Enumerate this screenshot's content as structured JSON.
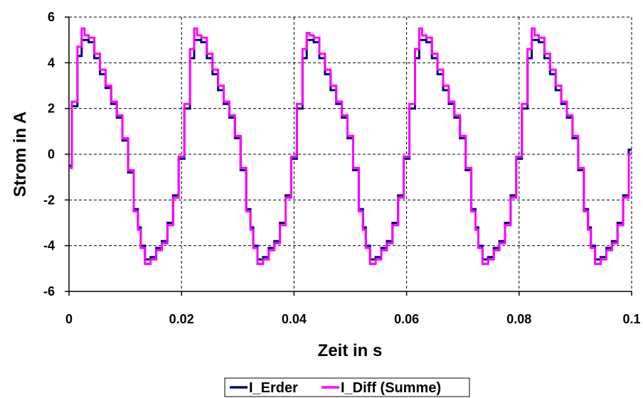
{
  "chart_data": {
    "type": "line",
    "title": "",
    "xlabel": "Zeit in s",
    "ylabel": "Strom in A",
    "xlim": [
      0,
      0.1
    ],
    "ylim": [
      -6,
      6
    ],
    "x_ticks": [
      0,
      0.02,
      0.04,
      0.06,
      0.08,
      0.1
    ],
    "x_tick_labels": [
      "0",
      "0.02",
      "0.04",
      "0.06",
      "0.08",
      "0.1"
    ],
    "y_ticks": [
      -6,
      -4,
      -2,
      0,
      2,
      4,
      6
    ],
    "y_tick_labels": [
      "-6",
      "-4",
      "-2",
      "0",
      "2",
      "4",
      "6"
    ],
    "grid": true,
    "legend_position": "bottom",
    "x": [
      0,
      0.001,
      0.002,
      0.0025,
      0.003,
      0.004,
      0.005,
      0.006,
      0.007,
      0.008,
      0.009,
      0.01,
      0.011,
      0.012,
      0.0125,
      0.013,
      0.014,
      0.015,
      0.016,
      0.017,
      0.018,
      0.019,
      0.02,
      0.021,
      0.022,
      0.0225,
      0.023,
      0.024,
      0.025,
      0.026,
      0.027,
      0.028,
      0.029,
      0.03,
      0.031,
      0.032,
      0.0325,
      0.033,
      0.034,
      0.035,
      0.036,
      0.037,
      0.038,
      0.039,
      0.04,
      0.041,
      0.042,
      0.0425,
      0.043,
      0.044,
      0.045,
      0.046,
      0.047,
      0.048,
      0.049,
      0.05,
      0.051,
      0.052,
      0.0525,
      0.053,
      0.054,
      0.055,
      0.056,
      0.057,
      0.058,
      0.059,
      0.06,
      0.061,
      0.062,
      0.0625,
      0.063,
      0.064,
      0.065,
      0.066,
      0.067,
      0.068,
      0.069,
      0.07,
      0.071,
      0.072,
      0.0725,
      0.073,
      0.074,
      0.075,
      0.076,
      0.077,
      0.078,
      0.079,
      0.08,
      0.081,
      0.082,
      0.0825,
      0.083,
      0.084,
      0.085,
      0.086,
      0.087,
      0.088,
      0.089,
      0.09,
      0.091,
      0.092,
      0.0925,
      0.093,
      0.094,
      0.095,
      0.096,
      0.097,
      0.098,
      0.099,
      0.1
    ],
    "series": [
      {
        "name": "I_Erder",
        "color": "#000080",
        "values": [
          -0.5,
          2.1,
          4.3,
          5.0,
          5.0,
          4.9,
          4.2,
          3.5,
          2.9,
          2.2,
          1.6,
          0.6,
          -0.8,
          -2.4,
          -3.2,
          -4.0,
          -4.6,
          -4.5,
          -4.1,
          -3.8,
          -3.0,
          -1.8,
          -0.2,
          2.0,
          4.2,
          5.0,
          5.0,
          4.9,
          4.2,
          3.5,
          2.8,
          2.2,
          1.6,
          0.7,
          -0.7,
          -2.4,
          -3.2,
          -4.0,
          -4.6,
          -4.5,
          -4.1,
          -3.8,
          -3.0,
          -1.8,
          -0.2,
          2.0,
          4.2,
          5.0,
          5.0,
          4.9,
          4.2,
          3.5,
          2.8,
          2.2,
          1.6,
          0.7,
          -0.7,
          -2.4,
          -3.2,
          -4.0,
          -4.6,
          -4.5,
          -4.1,
          -3.8,
          -3.0,
          -1.8,
          -0.2,
          2.0,
          4.2,
          5.0,
          5.0,
          4.9,
          4.2,
          3.5,
          2.8,
          2.2,
          1.6,
          0.7,
          -0.7,
          -2.4,
          -3.2,
          -4.0,
          -4.6,
          -4.5,
          -4.1,
          -3.8,
          -3.0,
          -1.8,
          -0.2,
          2.0,
          4.2,
          5.0,
          5.0,
          4.9,
          4.2,
          3.5,
          2.8,
          2.2,
          1.6,
          0.7,
          -0.7,
          -2.4,
          -3.2,
          -4.0,
          -4.6,
          -4.5,
          -4.1,
          -3.8,
          -3.0,
          -1.8,
          0.2
        ]
      },
      {
        "name": "I_Diff (Summe)",
        "color": "#ff00ff",
        "values": [
          -0.6,
          2.3,
          4.7,
          5.5,
          5.2,
          5.1,
          4.4,
          3.7,
          3.0,
          2.3,
          1.7,
          0.7,
          -0.7,
          -2.5,
          -3.3,
          -4.1,
          -4.8,
          -4.6,
          -4.2,
          -3.9,
          -3.1,
          -1.9,
          -0.1,
          2.2,
          4.6,
          5.5,
          5.2,
          5.1,
          4.4,
          3.7,
          3.0,
          2.3,
          1.7,
          0.8,
          -0.6,
          -2.5,
          -3.3,
          -4.1,
          -4.8,
          -4.6,
          -4.2,
          -3.9,
          -3.1,
          -1.9,
          -0.1,
          2.2,
          4.6,
          5.3,
          5.2,
          5.1,
          4.4,
          3.7,
          3.0,
          2.3,
          1.7,
          0.8,
          -0.6,
          -2.5,
          -3.3,
          -4.1,
          -4.8,
          -4.6,
          -4.2,
          -3.9,
          -3.1,
          -1.9,
          -0.1,
          2.2,
          4.6,
          5.5,
          5.2,
          5.1,
          4.4,
          3.7,
          3.0,
          2.3,
          1.7,
          0.8,
          -0.6,
          -2.5,
          -3.3,
          -4.1,
          -4.8,
          -4.6,
          -4.2,
          -3.9,
          -3.1,
          -1.9,
          -0.1,
          2.2,
          4.6,
          5.5,
          5.2,
          5.1,
          4.4,
          3.7,
          3.0,
          2.3,
          1.7,
          0.8,
          -0.6,
          -2.5,
          -3.3,
          -4.1,
          -4.8,
          -4.6,
          -4.2,
          -3.9,
          -3.1,
          -1.9,
          0.0
        ]
      }
    ]
  }
}
